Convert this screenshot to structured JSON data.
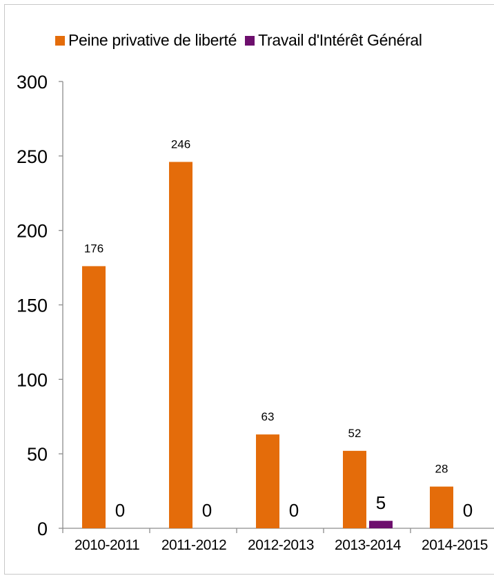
{
  "chart_data": {
    "type": "bar",
    "title": "",
    "xlabel": "",
    "ylabel": "",
    "categories": [
      "2010-2011",
      "2011-2012",
      "2012-2013",
      "2013-2014",
      "2014-2015"
    ],
    "series": [
      {
        "name": "Peine privative de liberté",
        "color": "#e46c0a",
        "values": [
          176,
          246,
          63,
          52,
          28
        ]
      },
      {
        "name": "Travail d'Intérêt Général",
        "color": "#6d0f6d",
        "values": [
          0,
          0,
          0,
          5,
          0
        ]
      }
    ],
    "ylim": [
      0,
      300
    ],
    "yticks": [
      0,
      50,
      100,
      150,
      200,
      250,
      300
    ],
    "grid": false,
    "legend": "top"
  }
}
